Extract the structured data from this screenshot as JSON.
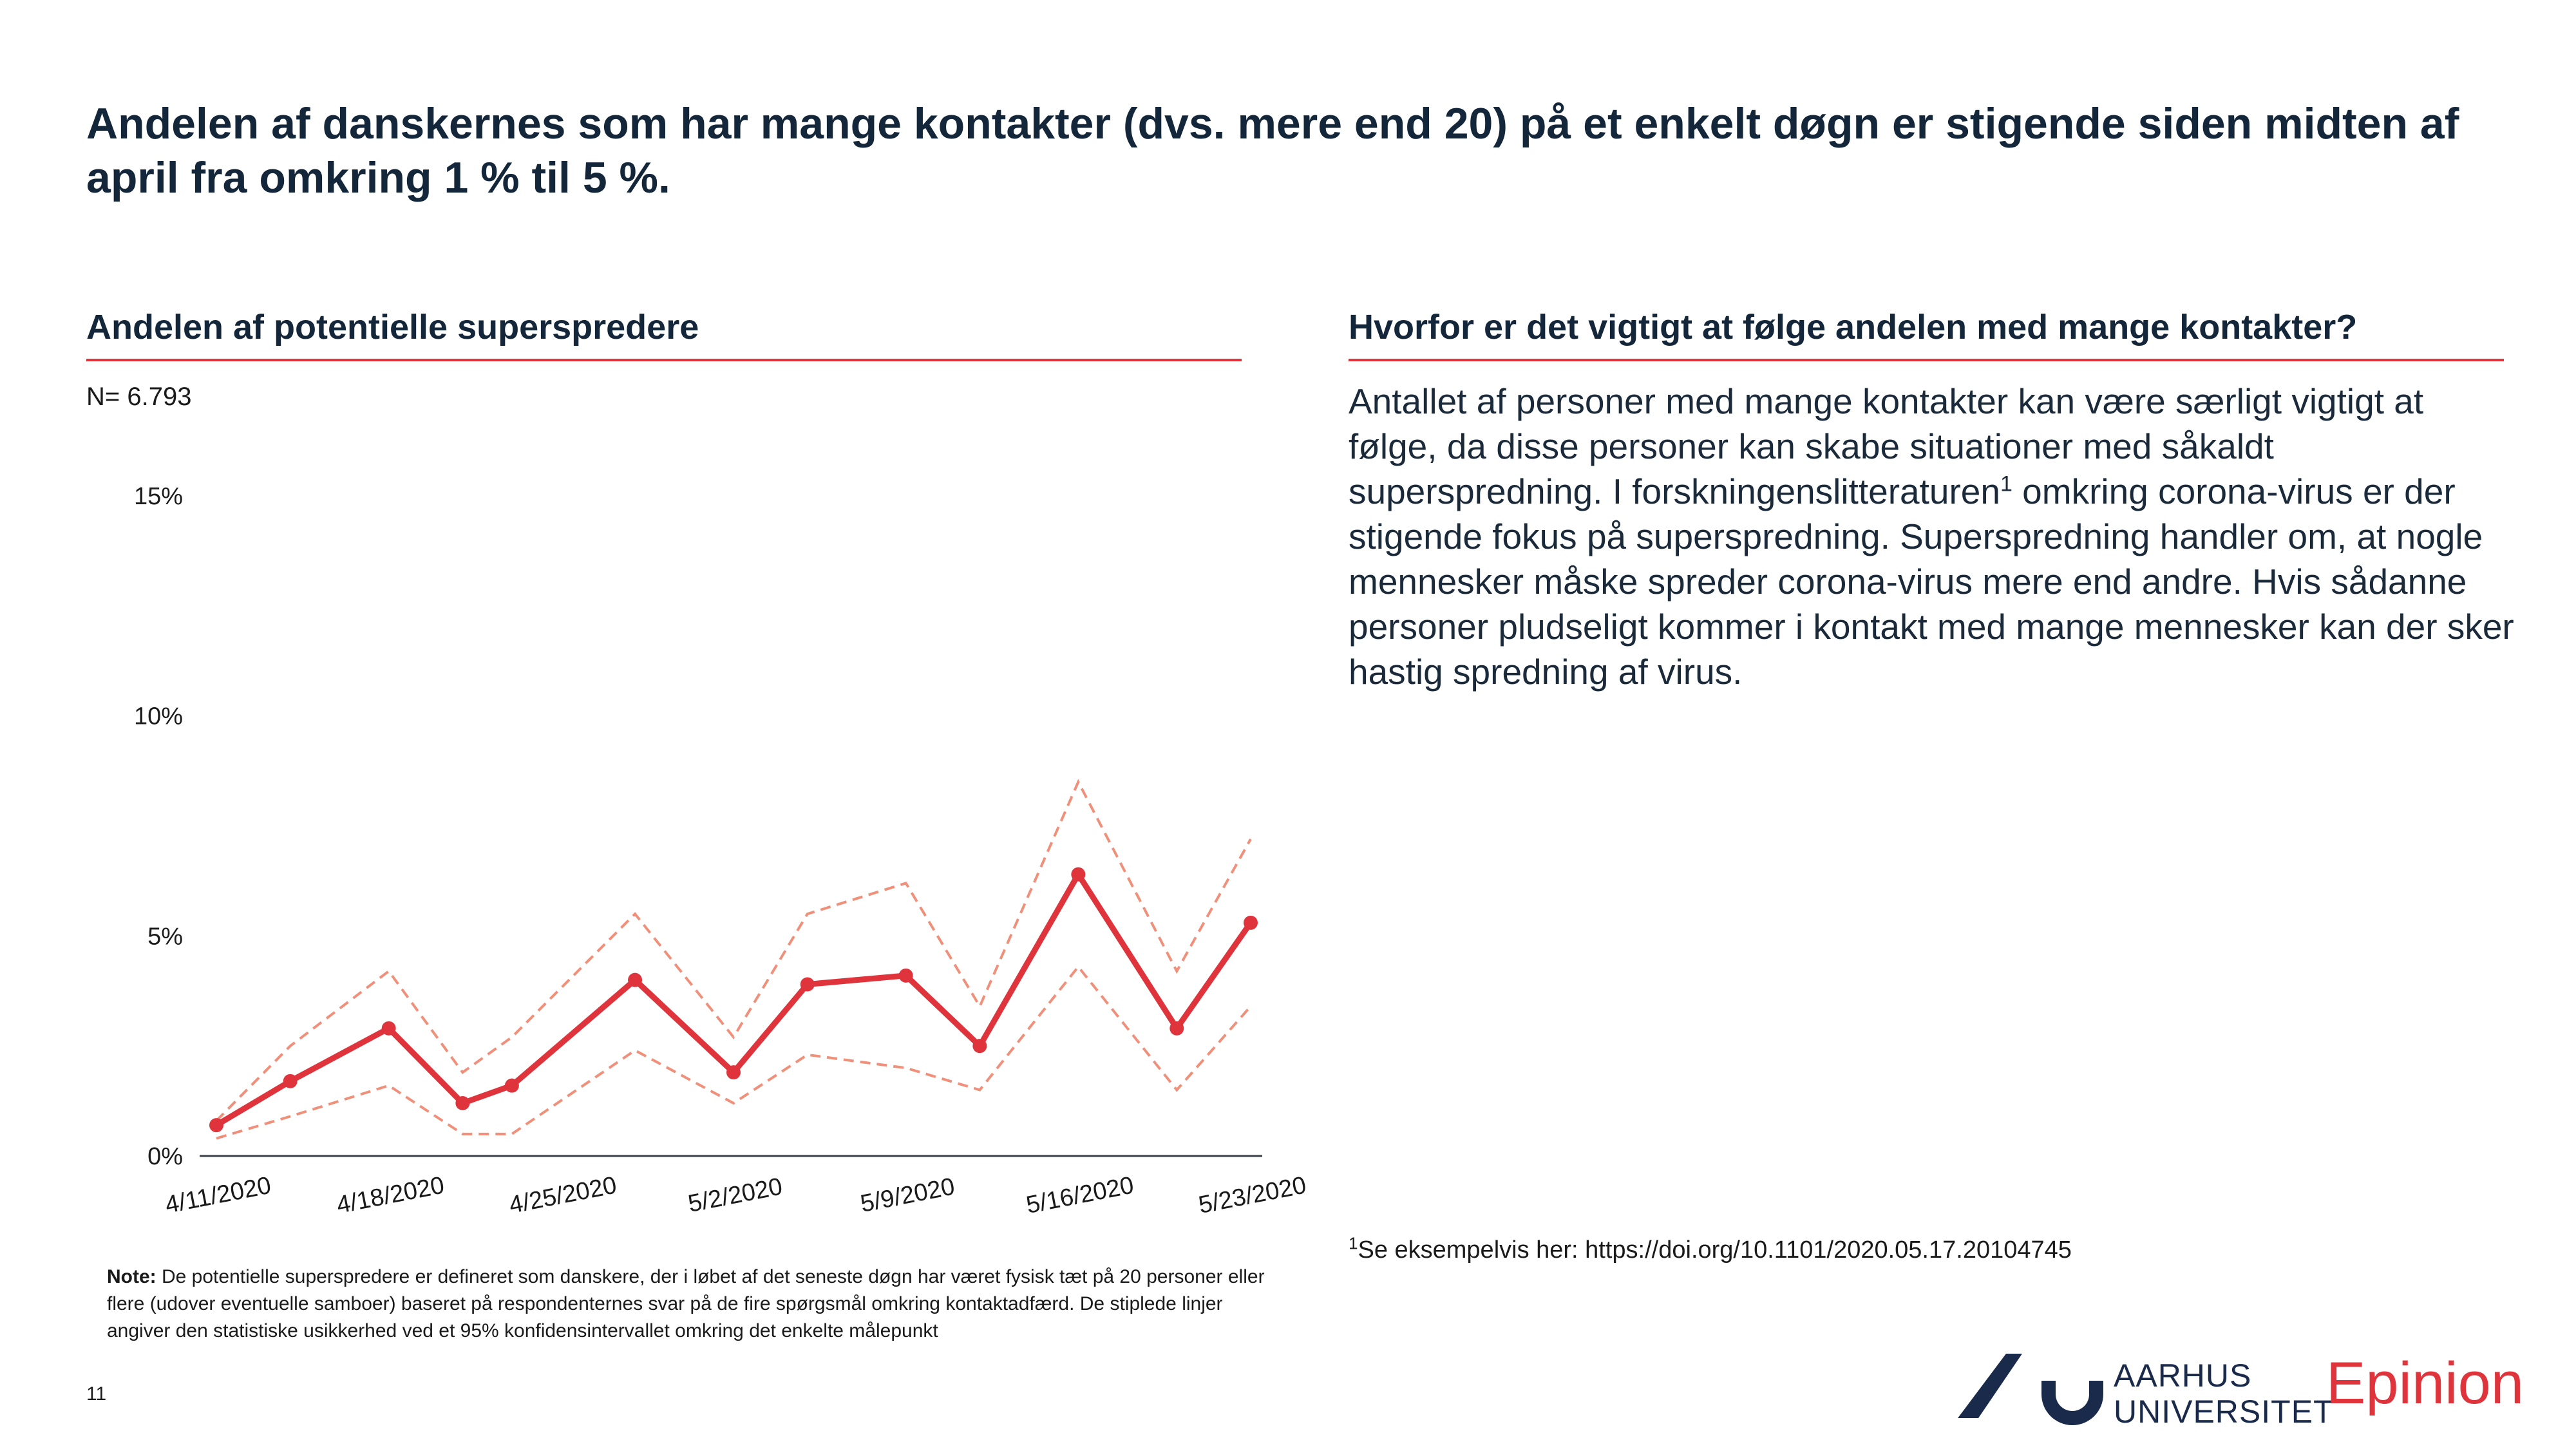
{
  "headline": "Andelen af danskernes som har mange kontakter (dvs. mere end 20) på et enkelt døgn er stigende siden midten af april fra omkring 1 % til 5 %.",
  "left_section": {
    "title": "Andelen af potentielle superspredere",
    "n_label": "N= 6.793"
  },
  "right_section": {
    "title": "Hvorfor er det vigtigt at følge andelen med mange kontakter?",
    "paragraph_part1": "Antallet af personer med mange kontakter kan være særligt vigtigt at følge, da disse personer kan skabe situationer med såkaldt superspredning. I forskningenslitteraturen",
    "paragraph_sup": "1",
    "paragraph_part2": " omkring corona-virus er der stigende fokus på superspredning. Superspredning handler om, at nogle mennesker måske spreder corona-virus mere end andre. Hvis sådanne personer pludseligt kommer i kontakt med mange mennesker kan der sker hastig spredning af virus.",
    "footnote_sup": "1",
    "footnote_text": "Se eksempelvis her: https://doi.org/10.1101/2020.05.17.20104745"
  },
  "note": {
    "label": "Note:",
    "text": " De potentielle superspredere er defineret som danskere, der i løbet af det seneste døgn har været fysisk tæt på 20 personer eller flere (udover eventuelle samboer) baseret på respondenternes svar på de fire spørgsmål omkring kontaktadfærd. De stiplede linjer angiver den statistiske usikkerhed ved et 95% konfidensintervallet omkring det enkelte målepunkt"
  },
  "page_number": "11",
  "logos": {
    "au_line1": "AARHUS",
    "au_line2": "UNIVERSITET",
    "epinion": "Epinion"
  },
  "colors": {
    "accent_red": "#e0343c",
    "ci_line": "#f0907a",
    "navy": "#14263a",
    "au_navy": "#1a2a4a"
  },
  "chart_data": {
    "type": "line",
    "x": [
      "4/11/2020",
      "4/14/2020",
      "4/18/2020",
      "4/21/2020",
      "4/23/2020",
      "4/28/2020",
      "5/2/2020",
      "5/5/2020",
      "5/9/2020",
      "5/12/2020",
      "5/16/2020",
      "5/20/2020",
      "5/23/2020"
    ],
    "x_ticks": [
      "4/11/2020",
      "4/18/2020",
      "4/25/2020",
      "5/2/2020",
      "5/9/2020",
      "5/16/2020",
      "5/23/2020"
    ],
    "series": [
      {
        "values": [
          0.7,
          1.7,
          2.9,
          1.2,
          1.6,
          4.0,
          1.9,
          3.9,
          4.1,
          2.5,
          6.4,
          2.9,
          5.3
        ]
      },
      {
        "values": [
          0.8,
          2.5,
          4.2,
          1.9,
          2.7,
          5.5,
          2.7,
          5.5,
          6.2,
          3.4,
          8.5,
          4.2,
          7.2
        ]
      },
      {
        "values": [
          0.4,
          0.9,
          1.6,
          0.5,
          0.5,
          2.4,
          1.2,
          2.3,
          2.0,
          1.5,
          4.3,
          1.5,
          3.4
        ]
      }
    ],
    "yticks": [
      "0%",
      "5%",
      "10%",
      "15%"
    ],
    "ylim": [
      0,
      15
    ],
    "grid": false,
    "legend": "none"
  }
}
